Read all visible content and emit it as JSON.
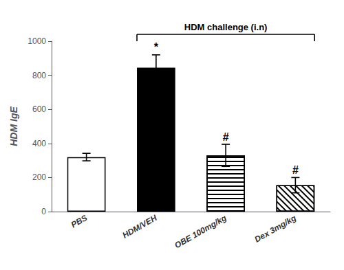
{
  "chart_data": {
    "type": "bar",
    "categories": [
      "PBS",
      "HDM/VEH",
      "OBE 100mg/kg",
      "Dex 3mg/kg"
    ],
    "values": [
      320,
      845,
      330,
      155
    ],
    "errors": [
      22,
      75,
      65,
      45
    ],
    "colors": [
      "#ffffff",
      "#000000",
      "#ffffff",
      "#ffffff"
    ],
    "ylabel": "HDM IgE",
    "ylim": [
      0,
      1000
    ],
    "yticks": [
      0,
      200,
      400,
      600,
      800,
      1000
    ],
    "grid": false,
    "annotations": [
      {
        "text": "*",
        "category": "HDM/VEH"
      },
      {
        "text": "#",
        "category": "OBE 100mg/kg"
      },
      {
        "text": "#",
        "category": "Dex 3mg/kg"
      },
      {
        "text": "HDM challenge (i.n)",
        "from": "HDM/VEH",
        "to": "Dex 3mg/kg"
      }
    ]
  }
}
